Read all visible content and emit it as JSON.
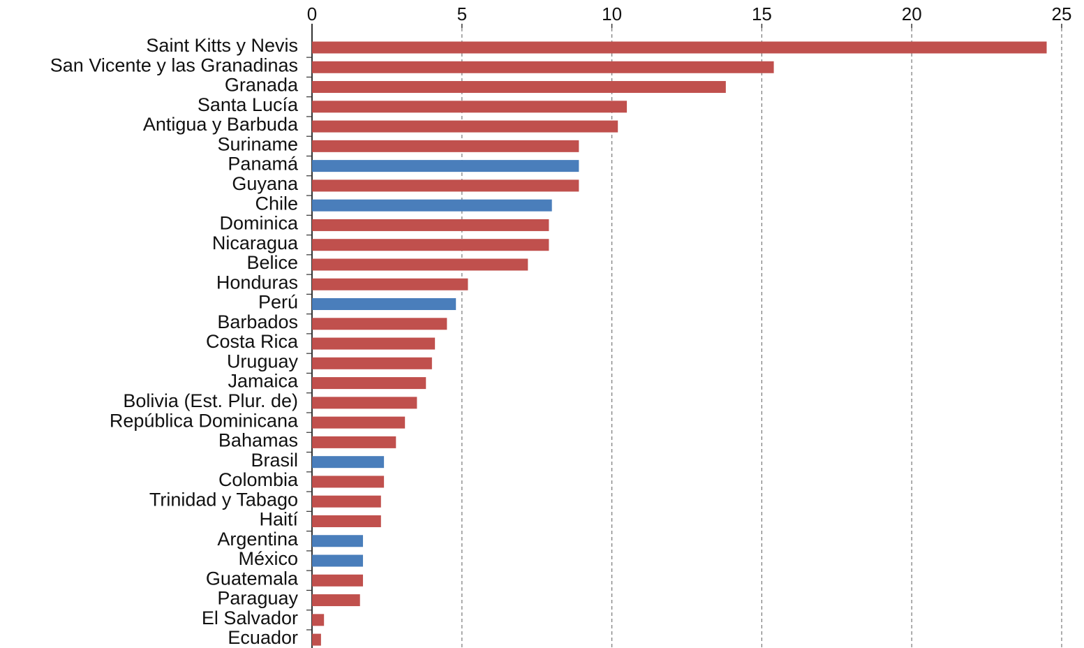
{
  "chart_data": {
    "type": "bar",
    "orientation": "horizontal",
    "categories": [
      "Saint Kitts y Nevis",
      "San Vicente y las Granadinas",
      "Granada",
      "Santa Lucía",
      "Antigua y Barbuda",
      "Suriname",
      "Panamá",
      "Guyana",
      "Chile",
      "Dominica",
      "Nicaragua",
      "Belice",
      "Honduras",
      "Perú",
      "Barbados",
      "Costa Rica",
      "Uruguay",
      "Jamaica",
      "Bolivia (Est. Plur. de)",
      "República Dominicana",
      "Bahamas",
      "Brasil",
      "Colombia",
      "Trinidad y Tabago",
      "Haití",
      "Argentina",
      "México",
      "Guatemala",
      "Paraguay",
      "El Salvador",
      "Ecuador"
    ],
    "values": [
      24.5,
      15.4,
      13.8,
      10.5,
      10.2,
      8.9,
      8.9,
      8.9,
      8.0,
      7.9,
      7.9,
      7.2,
      5.2,
      4.8,
      4.5,
      4.1,
      4.0,
      3.8,
      3.5,
      3.1,
      2.8,
      2.4,
      2.4,
      2.3,
      2.3,
      1.7,
      1.7,
      1.7,
      1.6,
      0.4,
      0.3
    ],
    "colors": [
      "#c0504d",
      "#c0504d",
      "#c0504d",
      "#c0504d",
      "#c0504d",
      "#c0504d",
      "#4a7ebb",
      "#c0504d",
      "#4a7ebb",
      "#c0504d",
      "#c0504d",
      "#c0504d",
      "#c0504d",
      "#4a7ebb",
      "#c0504d",
      "#c0504d",
      "#c0504d",
      "#c0504d",
      "#c0504d",
      "#c0504d",
      "#c0504d",
      "#4a7ebb",
      "#c0504d",
      "#c0504d",
      "#c0504d",
      "#4a7ebb",
      "#4a7ebb",
      "#c0504d",
      "#c0504d",
      "#c0504d",
      "#c0504d"
    ],
    "xlim": [
      0,
      25
    ],
    "xticks": [
      0,
      5,
      10,
      15,
      20,
      25
    ],
    "grid": true
  }
}
